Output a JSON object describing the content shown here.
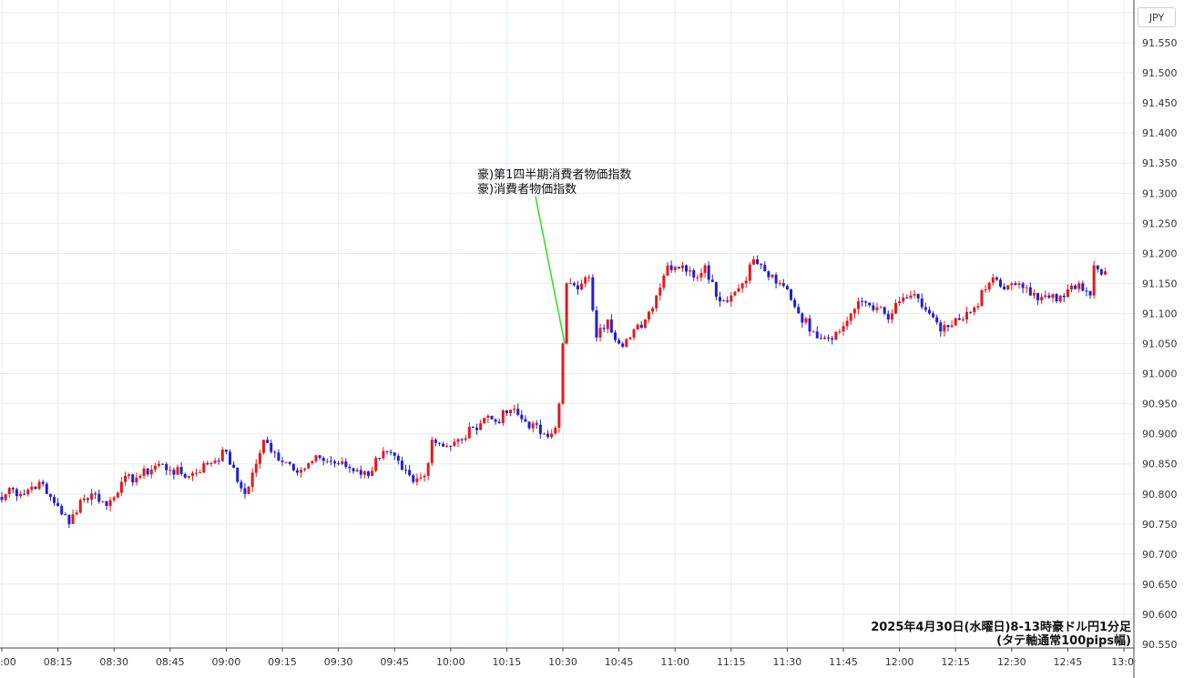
{
  "currency_label": "JPY",
  "colors": {
    "up": "#e31a1c",
    "down": "#1f1fd6",
    "grid": "#e3edf3",
    "annotation_line": "#33dd22"
  },
  "caption": {
    "line1": "2025年4月30日(水曜日)8-13時豪ドル円1分足",
    "line2": "(タテ軸通常100pips幅)"
  },
  "annotation": {
    "line1": "豪)第1四半期消費者物価指数",
    "line2": "豪)消費者物価指数",
    "time": "10:30",
    "price": 91.05
  },
  "chart_data": {
    "type": "candlestick",
    "title": "",
    "xlabel": "",
    "ylabel": "",
    "ylim": [
      90.55,
      91.6
    ],
    "y_ticks": [
      "91.550",
      "91.500",
      "91.450",
      "91.400",
      "91.350",
      "91.300",
      "91.250",
      "91.200",
      "91.150",
      "91.100",
      "91.050",
      "91.000",
      "90.950",
      "90.900",
      "90.850",
      "90.800",
      "90.750",
      "90.700",
      "90.650",
      "90.600",
      "90.550"
    ],
    "x_ticks": [
      ":00",
      "08:15",
      "08:30",
      "08:45",
      "09:00",
      "09:15",
      "09:30",
      "09:45",
      "10:00",
      "10:15",
      "10:30",
      "10:45",
      "11:00",
      "11:15",
      "11:30",
      "11:45",
      "12:00",
      "12:15",
      "12:30",
      "12:45",
      "13:0"
    ],
    "grid": true,
    "anchors": [
      [
        "08:00",
        90.79
      ],
      [
        "08:02",
        90.81
      ],
      [
        "08:05",
        90.8
      ],
      [
        "08:10",
        90.82
      ],
      [
        "08:12",
        90.8
      ],
      [
        "08:15",
        90.78
      ],
      [
        "08:18",
        90.75
      ],
      [
        "08:21",
        90.79
      ],
      [
        "08:25",
        90.8
      ],
      [
        "08:28",
        90.78
      ],
      [
        "08:32",
        90.82
      ],
      [
        "08:37",
        90.83
      ],
      [
        "08:42",
        90.85
      ],
      [
        "08:45",
        90.84
      ],
      [
        "08:50",
        90.83
      ],
      [
        "08:55",
        90.85
      ],
      [
        "09:00",
        90.87
      ],
      [
        "09:03",
        90.82
      ],
      [
        "09:05",
        90.8
      ],
      [
        "09:08",
        90.85
      ],
      [
        "09:10",
        90.89
      ],
      [
        "09:12",
        90.87
      ],
      [
        "09:17",
        90.85
      ],
      [
        "09:20",
        90.84
      ],
      [
        "09:25",
        90.86
      ],
      [
        "09:30",
        90.85
      ],
      [
        "09:35",
        90.84
      ],
      [
        "09:38",
        90.83
      ],
      [
        "09:40",
        90.86
      ],
      [
        "09:43",
        90.87
      ],
      [
        "09:47",
        90.84
      ],
      [
        "09:50",
        90.82
      ],
      [
        "09:53",
        90.83
      ],
      [
        "09:55",
        90.89
      ],
      [
        "10:00",
        90.88
      ],
      [
        "10:03",
        90.89
      ],
      [
        "10:06",
        90.91
      ],
      [
        "10:10",
        90.93
      ],
      [
        "10:12",
        90.92
      ],
      [
        "10:16",
        90.94
      ],
      [
        "10:20",
        90.92
      ],
      [
        "10:25",
        90.9
      ],
      [
        "10:28",
        90.91
      ],
      [
        "10:29",
        90.95
      ],
      [
        "10:30",
        91.05
      ],
      [
        "10:31",
        91.15
      ],
      [
        "10:34",
        91.14
      ],
      [
        "10:37",
        91.16
      ],
      [
        "10:39",
        91.06
      ],
      [
        "10:42",
        91.09
      ],
      [
        "10:45",
        91.05
      ],
      [
        "10:48",
        91.06
      ],
      [
        "10:52",
        91.09
      ],
      [
        "10:55",
        91.13
      ],
      [
        "10:58",
        91.18
      ],
      [
        "11:02",
        91.18
      ],
      [
        "11:05",
        91.16
      ],
      [
        "11:08",
        91.18
      ],
      [
        "11:12",
        91.12
      ],
      [
        "11:15",
        91.13
      ],
      [
        "11:18",
        91.15
      ],
      [
        "11:21",
        91.19
      ],
      [
        "11:24",
        91.17
      ],
      [
        "11:27",
        91.15
      ],
      [
        "11:30",
        91.14
      ],
      [
        "11:33",
        91.1
      ],
      [
        "11:37",
        91.07
      ],
      [
        "11:40",
        91.06
      ],
      [
        "11:44",
        91.07
      ],
      [
        "11:47",
        91.1
      ],
      [
        "11:50",
        91.12
      ],
      [
        "11:54",
        91.11
      ],
      [
        "11:57",
        91.09
      ],
      [
        "12:00",
        91.12
      ],
      [
        "12:03",
        91.13
      ],
      [
        "12:08",
        91.1
      ],
      [
        "12:11",
        91.07
      ],
      [
        "12:14",
        91.08
      ],
      [
        "12:17",
        91.09
      ],
      [
        "12:20",
        91.11
      ],
      [
        "12:23",
        91.14
      ],
      [
        "12:25",
        91.16
      ],
      [
        "12:28",
        91.14
      ],
      [
        "12:32",
        91.15
      ],
      [
        "12:35",
        91.13
      ],
      [
        "12:39",
        91.13
      ],
      [
        "12:42",
        91.12
      ],
      [
        "12:45",
        91.14
      ],
      [
        "12:48",
        91.15
      ],
      [
        "12:51",
        91.13
      ],
      [
        "12:52",
        91.18
      ],
      [
        "12:55",
        91.17
      ]
    ]
  }
}
